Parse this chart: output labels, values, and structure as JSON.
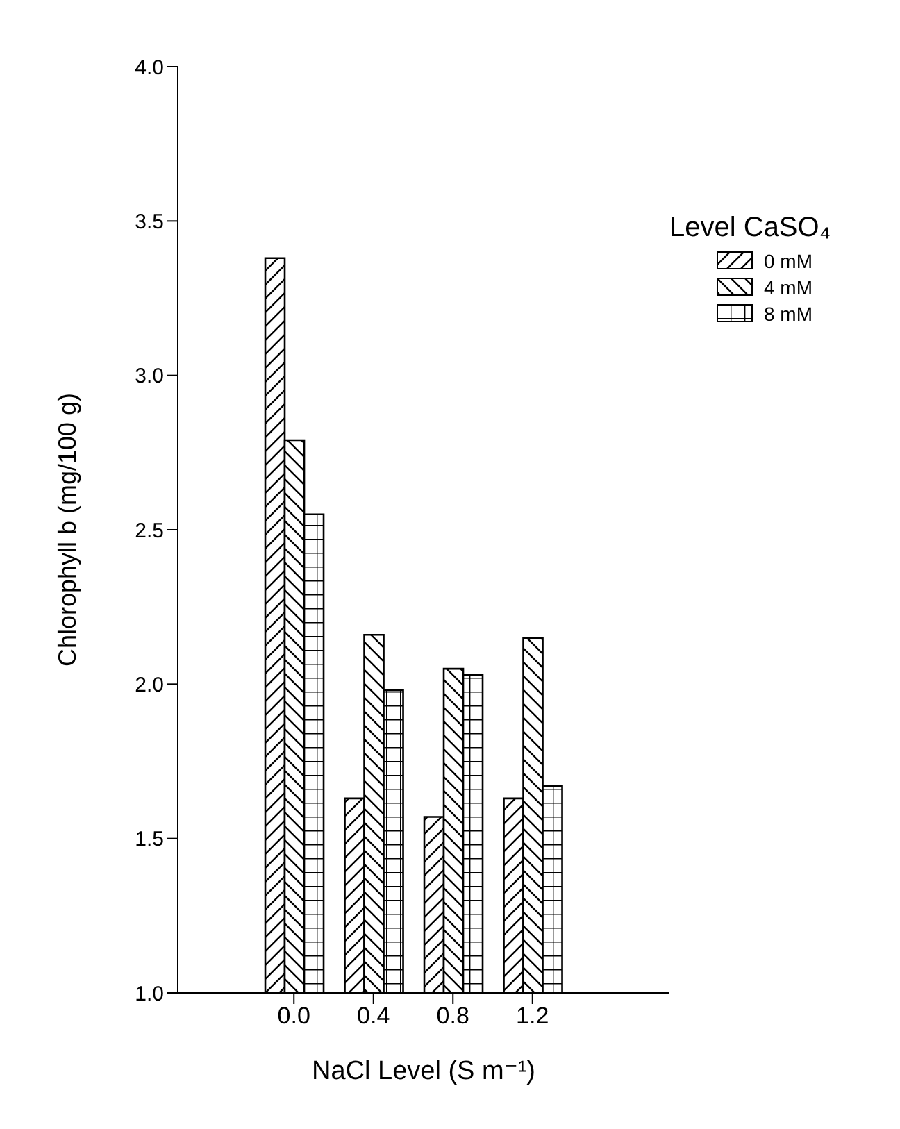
{
  "chart_data": {
    "type": "bar",
    "xlabel": "NaCl Level (S m⁻¹)",
    "ylabel": "Chlorophyll b (mg/100 g)",
    "legend_title": "Level CaSO₄",
    "categories": [
      "0.0",
      "0.4",
      "0.8",
      "1.2"
    ],
    "series": [
      {
        "name": "0 mM",
        "color": "#000000",
        "values": [
          3.38,
          1.63,
          1.57,
          1.63
        ]
      },
      {
        "name": "4 mM",
        "color": "#000000",
        "values": [
          2.79,
          2.16,
          2.05,
          2.15
        ]
      },
      {
        "name": "8 mM",
        "color": "#000000",
        "values": [
          2.55,
          1.98,
          2.03,
          1.67
        ]
      }
    ],
    "ylim": [
      1.0,
      4.0
    ],
    "yticks": [
      {
        "value": 1.0,
        "label": "1.0"
      },
      {
        "value": 1.5,
        "label": "1.5"
      },
      {
        "value": 2.0,
        "label": "2.0"
      },
      {
        "value": 2.5,
        "label": "2.5"
      },
      {
        "value": 3.0,
        "label": "3.0"
      },
      {
        "value": 3.5,
        "label": "3.5"
      },
      {
        "value": 4.0,
        "label": "4.0"
      }
    ],
    "grid": false,
    "legend": "top right"
  }
}
